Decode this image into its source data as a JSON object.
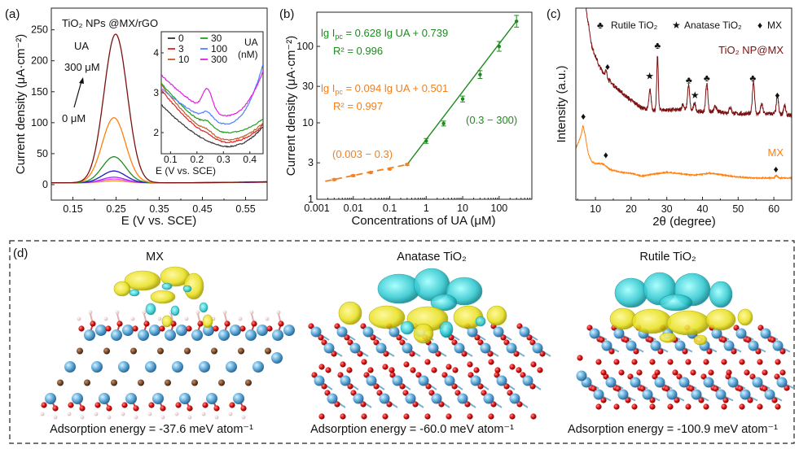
{
  "panels": {
    "a": "(a)",
    "b": "(b)",
    "c": "(c)",
    "d": "(d)"
  },
  "chart_data": [
    {
      "panel": "a",
      "type": "line",
      "annotation_title": "TiO₂ NPs @MX/rGO",
      "xlabel": "E (V vs. SCE)",
      "ylabel": "Current density (μA·cm⁻²)",
      "xlim": [
        0.1,
        0.6
      ],
      "ylim": [
        -25,
        285
      ],
      "xticks": [
        "0.15",
        "0.25",
        "0.35",
        "0.45",
        "0.55"
      ],
      "yticks": [
        "0",
        "50",
        "100",
        "150",
        "200",
        "250"
      ],
      "analyte": "UA",
      "arrow_top": "300 μM",
      "arrow_bottom": "0 μM",
      "peak_potential": 0.245,
      "series": [
        {
          "color": "#7a1010",
          "peak": 240
        },
        {
          "color": "#ff7f0e",
          "peak": 105
        },
        {
          "color": "#1f8a1f",
          "peak": 42
        },
        {
          "color": "#1c1cbf",
          "peak": 19
        },
        {
          "color": "#9b30ff",
          "peak": 9
        },
        {
          "color": "#ff40ff",
          "peak": 6
        },
        {
          "color": "#e0a030",
          "peak": 3
        }
      ],
      "inset": {
        "type": "line",
        "xlabel": "E (V vs. SCE)",
        "xlim": [
          0.065,
          0.45
        ],
        "ylim": [
          1.47,
          4.53
        ],
        "xticks": [
          "0.1",
          "0.2",
          "0.3",
          "0.4"
        ],
        "yticks": [
          "2",
          "3",
          "4"
        ],
        "legend_title": "UA",
        "legend_unit": "(nM)",
        "series": [
          {
            "name": "0",
            "color": "#333333",
            "start": 2.7,
            "min": 1.65,
            "end": 2.15,
            "peak": 0.0
          },
          {
            "name": "3",
            "color": "#e02020",
            "start": 3.08,
            "min": 1.76,
            "end": 2.2,
            "peak": 0.05
          },
          {
            "name": "10",
            "color": "#c0602a",
            "start": 3.2,
            "min": 1.82,
            "end": 2.25,
            "peak": 0.08
          },
          {
            "name": "30",
            "color": "#20a020",
            "start": 3.25,
            "min": 2.0,
            "end": 2.35,
            "peak": 0.12
          },
          {
            "name": "100",
            "color": "#5080ff",
            "start": 3.12,
            "min": 2.22,
            "end": 3.72,
            "peak": 0.18
          },
          {
            "name": "300",
            "color": "#e020e0",
            "start": 3.45,
            "min": 2.42,
            "end": 3.55,
            "peak": 0.55
          }
        ]
      }
    },
    {
      "panel": "b",
      "type": "scatter",
      "xlabel": "Concentrations of UA (μM)",
      "ylabel": "Current density (μA·cm⁻²)",
      "xscale": "log",
      "yscale": "log",
      "xlim": [
        0.001,
        790
      ],
      "ylim": [
        1,
        280
      ],
      "xticks": [
        "0.001",
        "0.01",
        "0.1",
        "1",
        "10",
        "100"
      ],
      "yticks": [
        "1",
        "3",
        "10",
        "30",
        "100"
      ],
      "series": [
        {
          "color": "#f08020",
          "line": "dashed",
          "x": [
            0.003,
            0.01,
            0.03,
            0.1,
            0.3
          ],
          "y": [
            1.81,
            2.04,
            2.24,
            2.49,
            2.85
          ],
          "equation": {
            "pre": "lg I",
            "sub": "pc",
            "post": " = 0.094 lg UA + 0.501"
          },
          "r2": "R² = 0.997",
          "range": "(0.003 − 0.3)"
        },
        {
          "color": "#1f8a1f",
          "line": "solid",
          "x": [
            1,
            3,
            10,
            30,
            100,
            300
          ],
          "y": [
            5.8,
            9.8,
            20.5,
            42.8,
            100,
            213
          ],
          "equation": {
            "pre": "lg I",
            "sub": "pc",
            "post": " = 0.628 lg UA + 0.739"
          },
          "r2": "R² = 0.996",
          "range": "(0.3 − 300)"
        }
      ]
    },
    {
      "panel": "c",
      "type": "line",
      "xlabel": "2θ (degree)",
      "ylabel": "Intensity (a.u.)",
      "xlim": [
        4.5,
        65
      ],
      "ylim": [
        0,
        100
      ],
      "xticks": [
        "10",
        "20",
        "30",
        "40",
        "50",
        "60"
      ],
      "legend": [
        {
          "symbol": "♣",
          "label": "Rutile TiO₂"
        },
        {
          "symbol": "★",
          "label": "Anatase TiO₂"
        },
        {
          "symbol": "♦",
          "label": "MX"
        }
      ],
      "series": [
        {
          "name": "TiO₂ NP@MX",
          "color": "#7a1010",
          "background": [
            [
              7.5,
              98
            ],
            [
              9,
              80
            ],
            [
              11,
              70
            ],
            [
              13,
              64
            ],
            [
              15,
              60
            ],
            [
              18,
              55
            ],
            [
              20,
              52
            ],
            [
              23,
              48
            ],
            [
              26,
              47
            ],
            [
              30,
              47
            ],
            [
              35,
              47
            ],
            [
              40,
              46
            ],
            [
              45,
              46
            ],
            [
              50,
              45
            ],
            [
              55,
              45
            ],
            [
              60,
              45
            ],
            [
              65,
              44
            ]
          ],
          "peaks": [
            [
              13,
              3
            ],
            [
              25.3,
              10
            ],
            [
              27.4,
              28
            ],
            [
              34.5,
              3
            ],
            [
              36.1,
              13
            ],
            [
              37.8,
              4
            ],
            [
              41.2,
              15
            ],
            [
              43.6,
              3
            ],
            [
              47.8,
              3
            ],
            [
              54.3,
              17
            ],
            [
              56.6,
              5
            ],
            [
              61,
              9
            ],
            [
              63,
              5
            ]
          ]
        },
        {
          "name": "MX",
          "color": "#ff7f0e",
          "background": [
            [
              4.5,
              27
            ],
            [
              5.2,
              30
            ],
            [
              6,
              34
            ],
            [
              6.5,
              39
            ],
            [
              7.2,
              33
            ],
            [
              8,
              24
            ],
            [
              9,
              20
            ],
            [
              10,
              19
            ],
            [
              12,
              19
            ],
            [
              14,
              16
            ],
            [
              17,
              14.5
            ],
            [
              20,
              14
            ],
            [
              23,
              12.5
            ],
            [
              26,
              13.5
            ],
            [
              30,
              14.5
            ],
            [
              35,
              13.5
            ],
            [
              38,
              13
            ],
            [
              42,
              14
            ],
            [
              46,
              13
            ],
            [
              50,
              12
            ],
            [
              55,
              11.5
            ],
            [
              60,
              11.5
            ],
            [
              60.7,
              13
            ],
            [
              61.5,
              11.5
            ],
            [
              65,
              11.5
            ]
          ],
          "peaks": []
        }
      ],
      "markers": [
        {
          "symbol": "♦",
          "x": 13.4,
          "y": 70
        },
        {
          "symbol": "★",
          "x": 25.2,
          "y": 65
        },
        {
          "symbol": "♣",
          "x": 27.4,
          "y": 81
        },
        {
          "symbol": "♣",
          "x": 36.2,
          "y": 63
        },
        {
          "symbol": "★",
          "x": 37.9,
          "y": 55
        },
        {
          "symbol": "♣",
          "x": 41.2,
          "y": 64
        },
        {
          "symbol": "♣",
          "x": 54.1,
          "y": 64
        },
        {
          "symbol": "♦",
          "x": 61,
          "y": 55
        },
        {
          "symbol": "♦",
          "x": 6.6,
          "y": 44
        },
        {
          "symbol": "♦",
          "x": 12.9,
          "y": 24
        },
        {
          "symbol": "♦",
          "x": 60.6,
          "y": 16.5
        }
      ]
    }
  ],
  "panel_d": {
    "structures": [
      {
        "title": "MX",
        "energy": "Adsorption energy = -37.6 meV atom⁻¹"
      },
      {
        "title": "Anatase TiO₂",
        "energy": "Adsorption energy = -60.0 meV atom⁻¹"
      },
      {
        "title": "Rutile TiO₂",
        "energy": "Adsorption energy = -100.9 meV atom⁻¹"
      }
    ],
    "colors": {
      "ti": "#6cb4e0",
      "o": "#e01818",
      "c": "#7a4a28",
      "h": "#f4dede",
      "charge_accumulation": "#e8e020",
      "charge_depletion": "#30c8d0"
    }
  }
}
